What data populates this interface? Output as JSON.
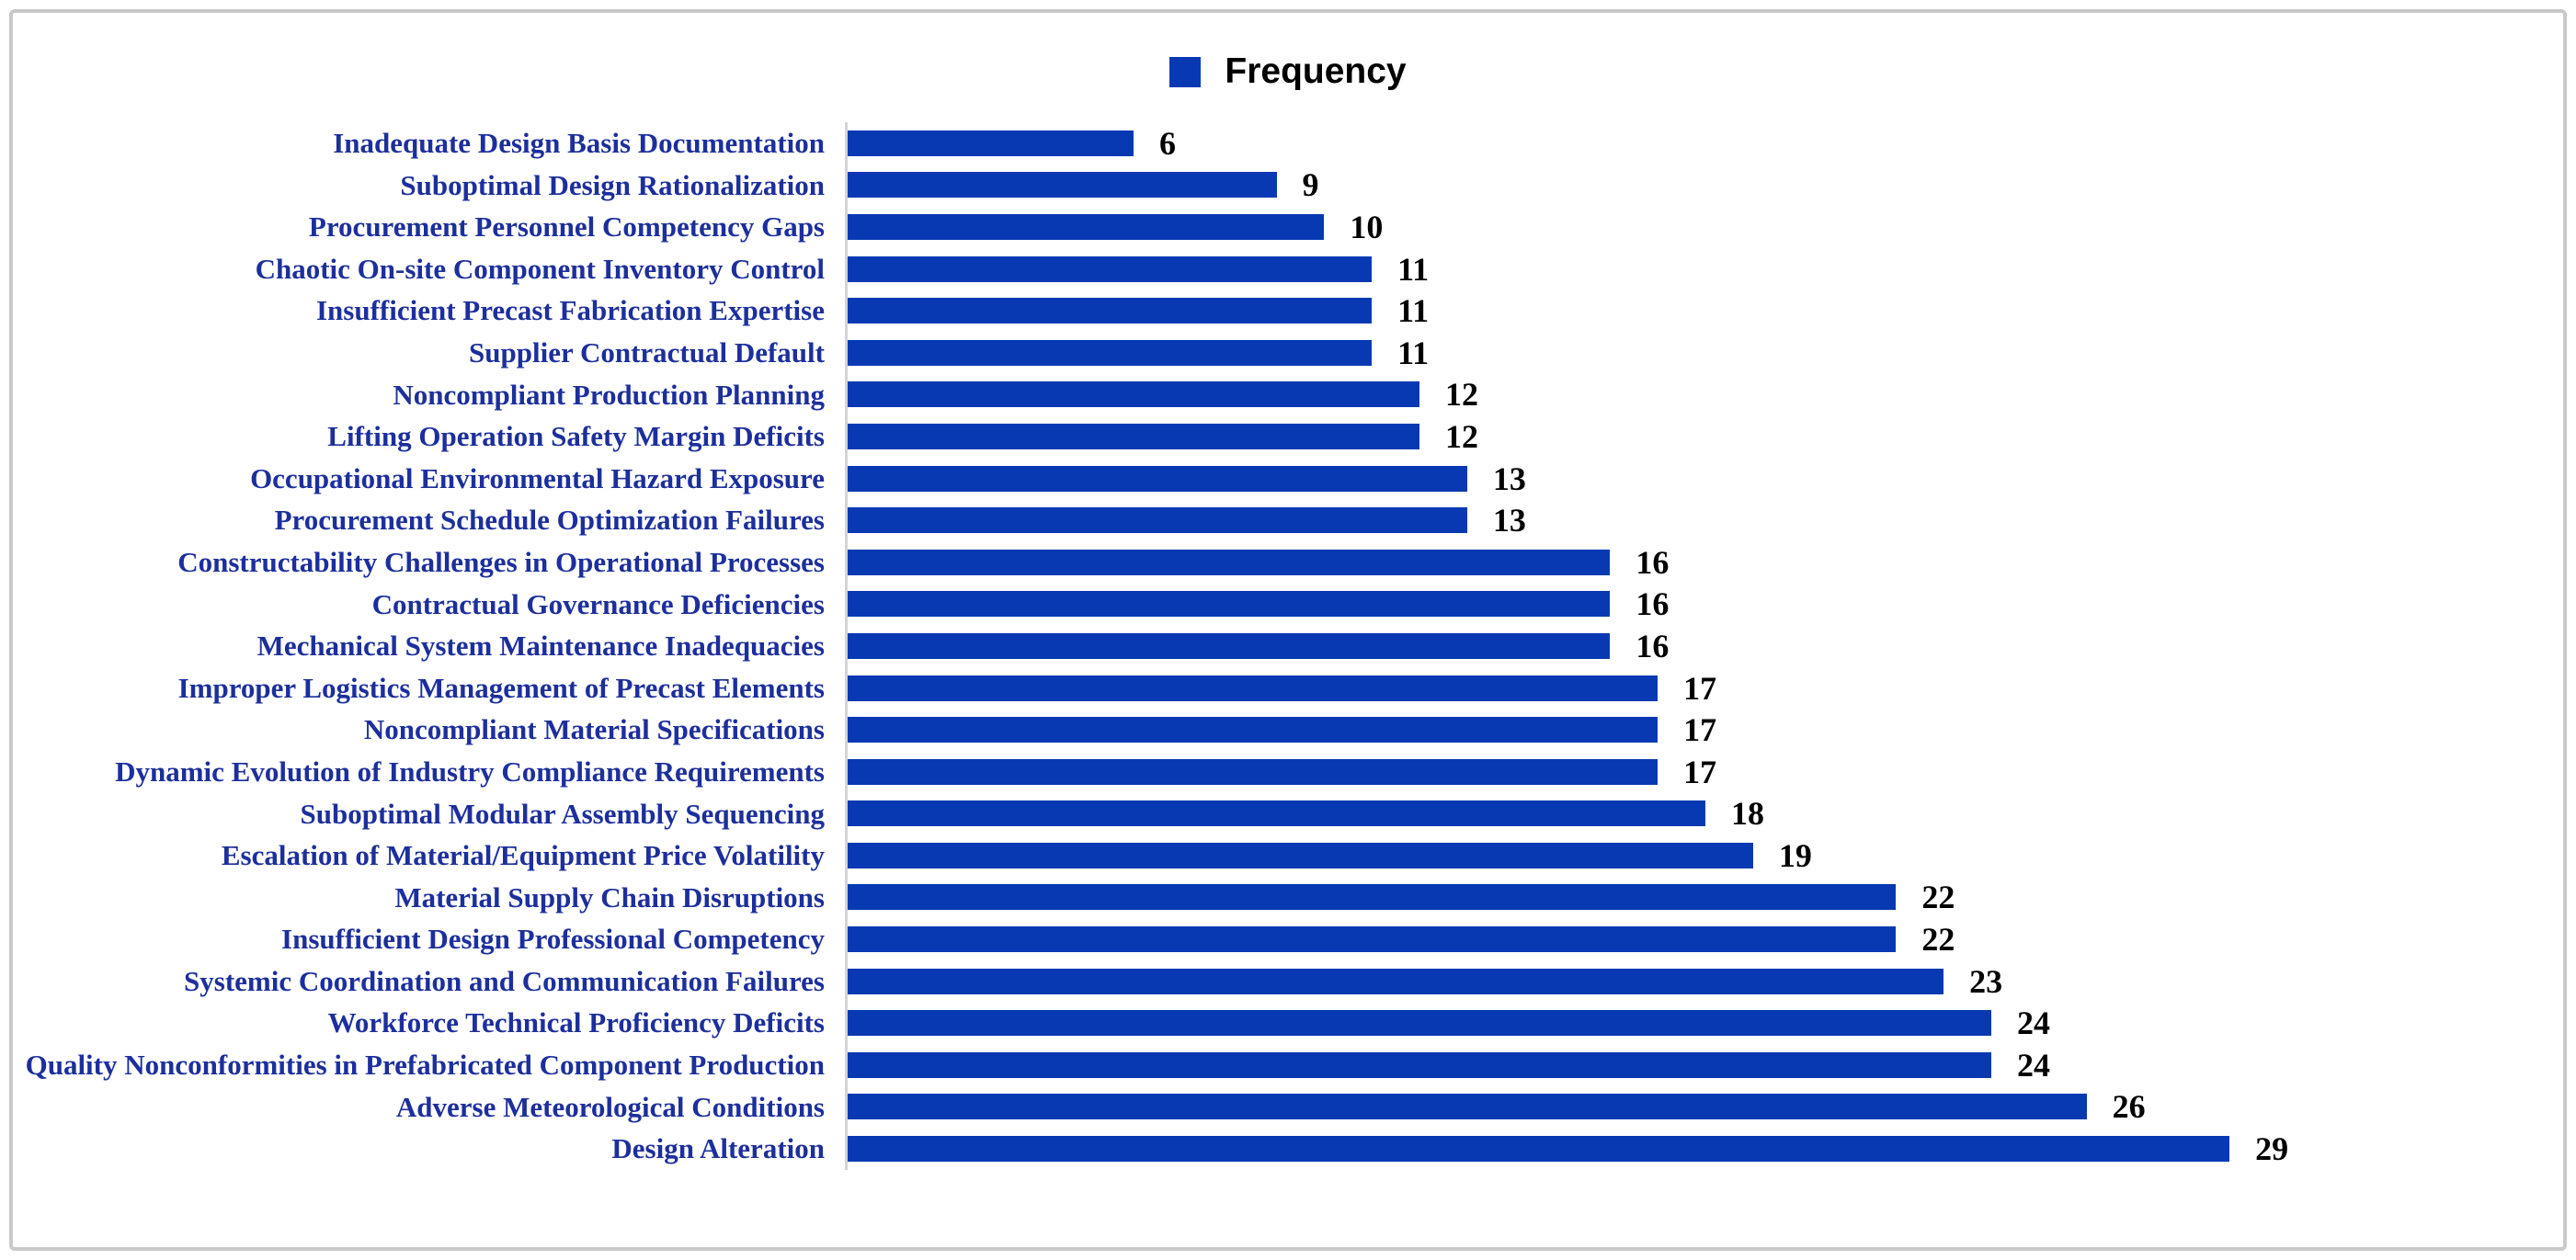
{
  "legend": {
    "label": "Frequency",
    "swatch_color": "#0839b3"
  },
  "colors": {
    "bar": "#0839b3",
    "category_label": "#1d2f9c",
    "value_label": "#000000",
    "axis_line": "#d4d4d4",
    "frame_border": "#c9c9c9",
    "background": "#ffffff"
  },
  "chart_data": {
    "type": "bar",
    "orientation": "horizontal",
    "title": "",
    "xlabel": "",
    "ylabel": "",
    "legend_entries": [
      "Frequency"
    ],
    "legend_position": "top-center",
    "grid": false,
    "xlim": [
      0,
      30
    ],
    "value_labels_shown": true,
    "categories": [
      "Inadequate Design Basis Documentation",
      "Suboptimal Design Rationalization",
      "Procurement Personnel Competency Gaps",
      "Chaotic On-site Component Inventory Control",
      "Insufficient Precast Fabrication Expertise",
      "Supplier Contractual Default",
      "Noncompliant Production Planning",
      "Lifting Operation Safety Margin Deficits",
      "Occupational Environmental Hazard Exposure",
      "Procurement Schedule Optimization Failures",
      "Constructability Challenges in Operational Processes",
      "Contractual Governance Deficiencies",
      "Mechanical System Maintenance Inadequacies",
      "Improper Logistics Management of Precast Elements",
      "Noncompliant Material Specifications",
      "Dynamic Evolution of Industry Compliance Requirements",
      "Suboptimal Modular Assembly Sequencing",
      "Escalation of Material/Equipment Price Volatility",
      "Material Supply Chain Disruptions",
      "Insufficient Design Professional Competency",
      "Systemic Coordination and Communication Failures",
      "Workforce Technical Proficiency Deficits",
      "Quality Nonconformities in Prefabricated Component Production",
      "Adverse Meteorological Conditions",
      "Design Alteration"
    ],
    "values": [
      6,
      9,
      10,
      11,
      11,
      11,
      12,
      12,
      13,
      13,
      16,
      16,
      16,
      17,
      17,
      17,
      18,
      19,
      22,
      22,
      23,
      24,
      24,
      26,
      29
    ]
  }
}
